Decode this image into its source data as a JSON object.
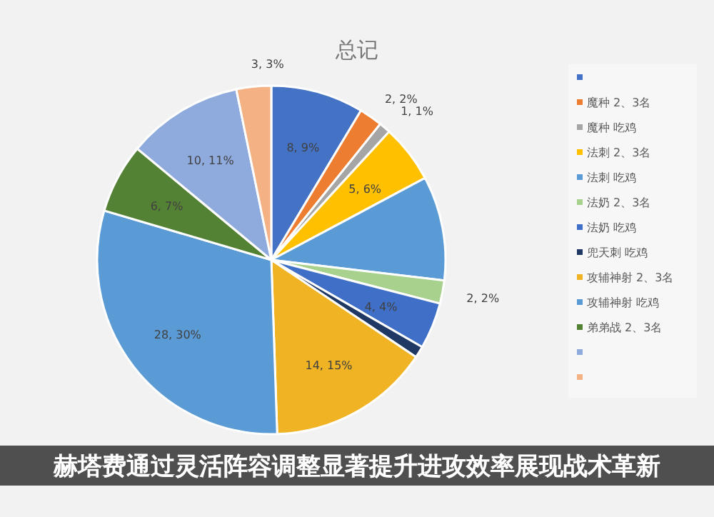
{
  "chart_data": {
    "type": "pie",
    "title": "总记",
    "categories": [
      null,
      "魔种 2、3名",
      "魔种 吃鸡",
      "法刺 2、3名",
      "法刺 吃鸡",
      "法奶 2、3名",
      "法奶 吃鸡",
      "兜天刺 吃鸡",
      "攻辅神射 2、3名",
      "攻辅神射 吃鸡",
      "弟弟战 2、3名",
      null,
      null
    ],
    "values": [
      8,
      2,
      1,
      5,
      9,
      2,
      4,
      1,
      14,
      28,
      6,
      10,
      3
    ],
    "value_labels": [
      "8, 9%",
      "2, 2%",
      "1, 1%",
      "5, 6%",
      null,
      "2, 2%",
      "4, 4%",
      null,
      "14, 15%",
      "28, 30%",
      "6, 7%",
      "10, 11%",
      "3, 3%"
    ],
    "colors": [
      "#4472c4",
      "#ed7d31",
      "#a5a5a5",
      "#ffc000",
      "#5b9bd5",
      "#a9d18e",
      "#3f6fc6",
      "#1f3864",
      "#f0b323",
      "#5b9bd5",
      "#548235",
      "#8faadc",
      "#f4b183"
    ],
    "legend": "right",
    "annotations": [
      "赫塔费通过灵活阵容调整显著提升进攻效率展现战术革新"
    ]
  }
}
